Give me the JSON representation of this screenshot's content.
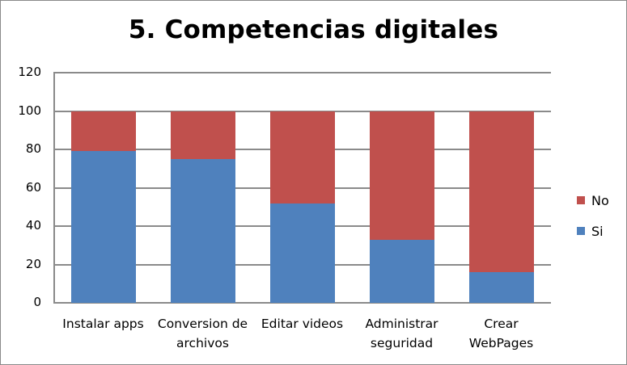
{
  "chart_data": {
    "type": "bar",
    "stacked": true,
    "title": "5. Competencias digitales",
    "xlabel": "",
    "ylabel": "",
    "ylim": [
      0,
      120
    ],
    "yticks": [
      0,
      20,
      40,
      60,
      80,
      100,
      120
    ],
    "grid": true,
    "legend_position": "right",
    "categories": [
      "Instalar apps",
      "Conversion de archivos",
      "Editar videos",
      "Administrar seguridad",
      "Crear WebPages"
    ],
    "category_lines": [
      [
        "Instalar apps"
      ],
      [
        "Conversion de",
        "archivos"
      ],
      [
        "Editar videos"
      ],
      [
        "Administrar",
        "seguridad"
      ],
      [
        "Crear",
        "WebPages"
      ]
    ],
    "series": [
      {
        "name": "Si",
        "color": "#4f81bd",
        "values": [
          79,
          75,
          52,
          33,
          16
        ]
      },
      {
        "name": "No",
        "color": "#c0504d",
        "values": [
          21,
          25,
          48,
          67,
          84
        ]
      }
    ]
  },
  "legend": {
    "items": [
      {
        "label": "No",
        "color": "#c0504d"
      },
      {
        "label": "Si",
        "color": "#4f81bd"
      }
    ]
  }
}
